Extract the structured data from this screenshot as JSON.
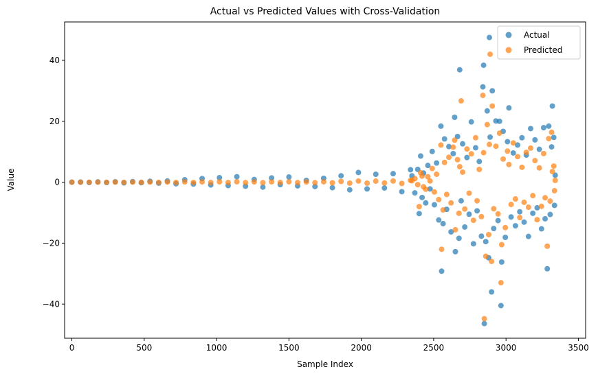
{
  "chart_data": {
    "type": "scatter",
    "title": "Actual vs Predicted Values with Cross-Validation",
    "x_label": "Sample Index",
    "y_label": "Value",
    "x": [
      0,
      60,
      120,
      180,
      240,
      300,
      360,
      420,
      480,
      540,
      600,
      660,
      720,
      780,
      840,
      900,
      960,
      1020,
      1080,
      1140,
      1200,
      1260,
      1320,
      1380,
      1440,
      1500,
      1560,
      1620,
      1680,
      1740,
      1800,
      1860,
      1920,
      1980,
      2040,
      2100,
      2160,
      2220,
      2280,
      2340,
      2350,
      2370,
      2390,
      2400,
      2410,
      2420,
      2430,
      2445,
      2460,
      2475,
      2490,
      2505,
      2520,
      2535,
      2550,
      2555,
      2565,
      2575,
      2590,
      2605,
      2620,
      2635,
      2645,
      2650,
      2665,
      2675,
      2680,
      2690,
      2700,
      2715,
      2730,
      2745,
      2760,
      2775,
      2790,
      2800,
      2815,
      2830,
      2840,
      2845,
      2850,
      2860,
      2870,
      2880,
      2885,
      2890,
      2900,
      2905,
      2915,
      2930,
      2945,
      2955,
      2965,
      2970,
      2980,
      2995,
      3010,
      3020,
      3035,
      3050,
      3065,
      3080,
      3095,
      3110,
      3125,
      3140,
      3155,
      3170,
      3185,
      3200,
      3215,
      3230,
      3245,
      3260,
      3270,
      3285,
      3295,
      3305,
      3315,
      3320,
      3330,
      3335,
      3340
    ],
    "series": [
      {
        "name": "Actual",
        "color": "#1f77b4",
        "values": [
          0,
          0.05,
          -0.1,
          0.1,
          -0.1,
          0.15,
          -0.2,
          0.2,
          -0.15,
          0.3,
          -0.3,
          0.4,
          -0.5,
          0.8,
          -0.6,
          1.2,
          -0.9,
          1.5,
          -1.1,
          1.8,
          -1.3,
          0.9,
          -1.6,
          1.4,
          -0.8,
          1.7,
          -1.2,
          0.6,
          -1.4,
          1.3,
          -1.8,
          2.1,
          -2.5,
          3.2,
          -2.2,
          2.6,
          -1.9,
          2.8,
          -3.1,
          4.1,
          2.1,
          -3.5,
          4.2,
          -10.3,
          8.6,
          -5,
          3,
          -6.8,
          5.5,
          -2.2,
          10.1,
          -7.4,
          6.3,
          -12.4,
          18.4,
          -29.2,
          -13.6,
          14.2,
          -8.9,
          11.7,
          -16.3,
          9.4,
          21.3,
          -22.8,
          15,
          -18.4,
          36.9,
          -6.1,
          12.6,
          -14.7,
          8.1,
          -10.5,
          19.8,
          -20.2,
          11.3,
          -9.4,
          6.8,
          -17.7,
          31.3,
          38.4,
          -46.4,
          -19.5,
          23.4,
          -24.8,
          47.5,
          14.8,
          -36,
          30,
          -15.2,
          20.1,
          -12.6,
          20,
          -40.5,
          -26.2,
          16.7,
          -18.1,
          13.3,
          24.4,
          -11.4,
          9.6,
          -14.3,
          12.2,
          -9.7,
          14.6,
          -13.1,
          8.9,
          -17.8,
          17.6,
          -10.2,
          13.9,
          -8.4,
          10.8,
          -15.3,
          17.9,
          -12,
          -28.4,
          18.4,
          -10.6,
          11.6,
          25,
          14.7,
          -7.6,
          2.3
        ]
      },
      {
        "name": "Predicted",
        "color": "#ff7f0e",
        "values": [
          0,
          0,
          0,
          0.02,
          -0.02,
          0.03,
          -0.03,
          0.04,
          -0.04,
          0.05,
          -0.05,
          0.06,
          -0.07,
          0.1,
          -0.08,
          0.12,
          -0.1,
          0.14,
          -0.1,
          0.15,
          -0.12,
          0.1,
          -0.15,
          0.13,
          -0.1,
          0.16,
          -0.12,
          0.08,
          -0.14,
          0.15,
          -0.2,
          0.25,
          -0.3,
          0.4,
          -0.3,
          0.35,
          -0.25,
          0.4,
          -0.4,
          0.6,
          0.5,
          1.2,
          -0.8,
          -8,
          3.1,
          2,
          -1.5,
          -2.3,
          1.8,
          0.4,
          4.5,
          -3.2,
          2.6,
          -5.7,
          12.2,
          -22,
          -9.1,
          6.5,
          -4,
          8.2,
          -6.8,
          11.5,
          13.8,
          -15.6,
          7.4,
          -10.2,
          5.1,
          26.7,
          3.3,
          -8.8,
          10.9,
          -3.6,
          9.3,
          -12.5,
          14.6,
          -6.1,
          4.2,
          -11.3,
          28.5,
          9.7,
          -44.8,
          -24.3,
          18.9,
          -17.2,
          12.4,
          42,
          -26,
          25,
          -8.7,
          11.8,
          -10.4,
          16.1,
          -33,
          -20.5,
          7.6,
          -14.9,
          10.2,
          5.8,
          -7.3,
          12.9,
          -5.5,
          8.4,
          -11.6,
          4.9,
          -6.6,
          9.8,
          -8.2,
          11.2,
          -4.4,
          7.1,
          -12.3,
          4.7,
          -7.9,
          9.4,
          -5.1,
          -21,
          14.3,
          -6.2,
          16.4,
          3.5,
          5.3,
          -2.8,
          0.6
        ]
      }
    ],
    "xlim": [
      -50,
      3550
    ],
    "ylim": [
      -51.2,
      52.6
    ],
    "xticks": [
      0,
      500,
      1000,
      1500,
      2000,
      2500,
      3000,
      3500
    ],
    "yticks": [
      {
        "value": -40,
        "label": "−40"
      },
      {
        "value": -20,
        "label": "−20"
      },
      0,
      20,
      40
    ],
    "legend": "upper right",
    "grid": false,
    "opacity": 0.7
  }
}
